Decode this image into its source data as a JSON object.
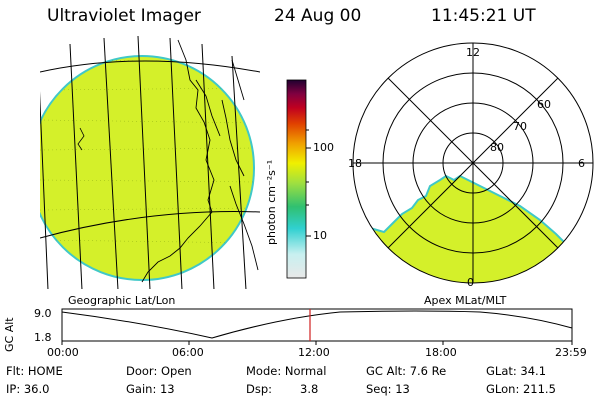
{
  "header": {
    "title": "Ultraviolet Imager",
    "date": "24 Aug 00",
    "time": "11:45:21 UT"
  },
  "colorbar": {
    "unit_label": "photon cm⁻²s⁻¹",
    "tick_100": "100",
    "tick_10": "10",
    "gradient": [
      "#e8e8e8",
      "#c8f0f0",
      "#30d0d0",
      "#30c070",
      "#a0e040",
      "#f0f000",
      "#f0a000",
      "#e04000",
      "#c00020",
      "#800040",
      "#200030"
    ]
  },
  "panels": {
    "geo_label": "Geographic Lat/Lon",
    "apex_label": "Apex MLat/MLT"
  },
  "polar": {
    "mlt_labels": {
      "top": "12",
      "left": "18",
      "right": "6",
      "bottom": "0"
    },
    "lat_labels": [
      "60",
      "70",
      "80"
    ]
  },
  "altitude_plot": {
    "ylabel": "GC Alt",
    "y_top": "9.0",
    "y_bottom": "1.8",
    "x_ticks": [
      "00:00",
      "06:00",
      "12:00",
      "18:00",
      "23:59"
    ]
  },
  "info": {
    "flt": "Flt: HOME",
    "door": "Door: Open",
    "mode": "Mode: Normal",
    "gc_alt": "GC Alt: 7.6 Re",
    "glat": "GLat:  34.1",
    "ip": "IP: 36.0",
    "gain": "Gain: 13",
    "dsp_label": "Dsp:",
    "dsp_value": "3.8",
    "seq": "Seq: 13",
    "glon": "GLon: 211.5"
  },
  "colors": {
    "aurora_fill": "#d4f02a",
    "edge": "#40c8c8",
    "marker": "#d02020"
  }
}
